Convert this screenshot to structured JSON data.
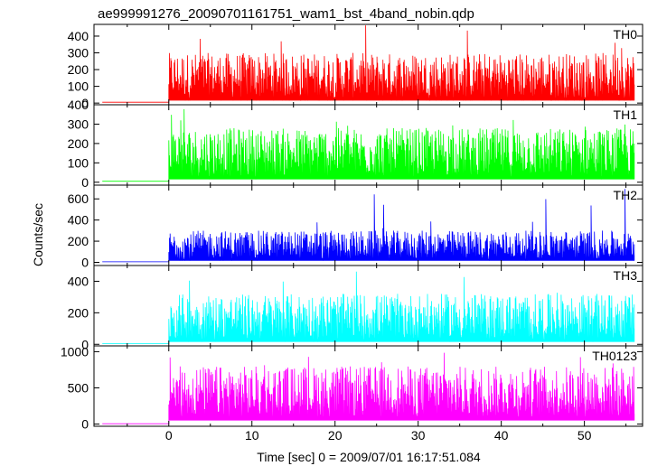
{
  "title": "ae999991276_20090701161751_wam1_bst_4band_nobin.qdp",
  "chart_data": {
    "type": "line",
    "xlabel": "Time [sec] 0 = 2009/07/01 16:17:51.084",
    "ylabel": "Counts/sec",
    "xlim": [
      -9,
      57
    ],
    "xticks": [
      0,
      10,
      20,
      30,
      40,
      50
    ],
    "x_range": [
      -8,
      56
    ],
    "burst_start": 0,
    "series": [
      {
        "name": "TH0",
        "color": "#ff0000",
        "ylim": [
          -10,
          470
        ],
        "yticks": [
          0,
          100,
          200,
          300,
          400
        ],
        "pre_level": 5,
        "peak_max": 470,
        "typical_band": [
          30,
          300
        ]
      },
      {
        "name": "TH1",
        "color": "#00ff00",
        "ylim": [
          -15,
          400
        ],
        "yticks": [
          0,
          100,
          200,
          300,
          400
        ],
        "pre_level": 5,
        "peak_max": 400,
        "typical_band": [
          30,
          280
        ]
      },
      {
        "name": "TH2",
        "color": "#0000ff",
        "ylim": [
          -30,
          730
        ],
        "yticks": [
          0,
          200,
          400,
          600
        ],
        "pre_level": 5,
        "peak_max": 720,
        "typical_band": [
          30,
          300
        ]
      },
      {
        "name": "TH3",
        "color": "#00ffff",
        "ylim": [
          -10,
          500
        ],
        "yticks": [
          0,
          200,
          400
        ],
        "pre_level": 5,
        "peak_max": 480,
        "typical_band": [
          30,
          320
        ]
      },
      {
        "name": "TH0123",
        "color": "#ff00ff",
        "ylim": [
          -30,
          1080
        ],
        "yticks": [
          0,
          500,
          1000
        ],
        "pre_level": 5,
        "peak_max": 1050,
        "typical_band": [
          100,
          800
        ]
      }
    ]
  }
}
